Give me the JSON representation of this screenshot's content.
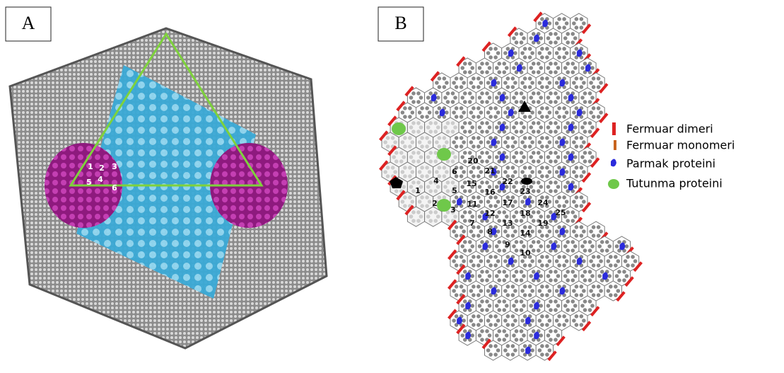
{
  "panel_a": {
    "label": "A",
    "numbers": [
      "1",
      "2",
      "3",
      "4",
      "5",
      "6"
    ]
  },
  "panel_b": {
    "label": "B",
    "numbers": [
      "1",
      "2",
      "3",
      "4",
      "5",
      "6",
      "7",
      "8",
      "9",
      "10",
      "11",
      "12",
      "13",
      "14",
      "15",
      "16",
      "17",
      "18",
      "19",
      "20",
      "21",
      "22",
      "23",
      "24",
      "25"
    ],
    "legend": [
      "Fermuar dimeri",
      "Fermuar monomeri",
      "Parmak proteini",
      "Tutunma proteini"
    ]
  }
}
